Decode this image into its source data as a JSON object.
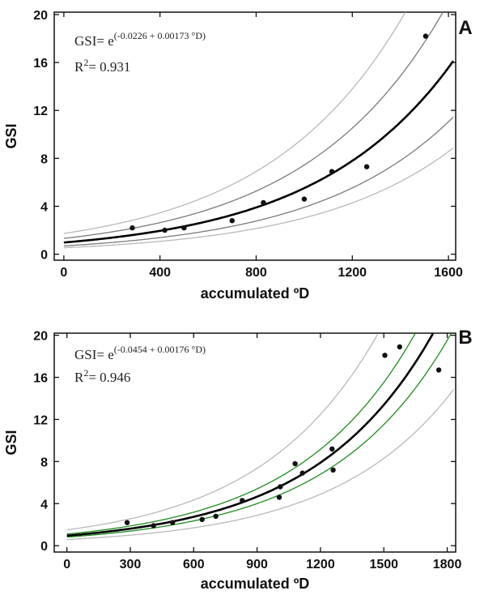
{
  "chart_data": [
    {
      "type": "scatter",
      "panel_label": "A",
      "xlabel": "accumulated ºD",
      "ylabel": "GSI",
      "xlim": [
        -40,
        1630
      ],
      "ylim": [
        -0.5,
        20.2
      ],
      "xticks": [
        0,
        400,
        800,
        1200,
        1600
      ],
      "yticks": [
        0,
        4,
        8,
        12,
        16,
        20
      ],
      "x_tick_labels": [
        "0",
        "400",
        "800",
        "1200",
        "1600"
      ],
      "y_tick_labels": [
        "0",
        "4",
        "8",
        "12",
        "16",
        "20"
      ],
      "equation_lhs": "GSI= e",
      "equation_exp": "(-0.0226 + 0.00173 °D)",
      "r2_label": "R",
      "r2_sup": "2",
      "r2_value": "= 0.931",
      "fit": {
        "a": -0.0226,
        "b": 0.00173
      },
      "inner_bands": {
        "upper_factor": 1.35,
        "lower_factor": 0.71
      },
      "outer_bands": {
        "upper_factor": 1.77,
        "lower_factor": 0.55
      },
      "grid": false,
      "colors": {
        "fit": "#000000",
        "inner_band": "#7a7a7a",
        "outer_band": "#b8b8b8",
        "points": "#111111"
      },
      "points": [
        {
          "x": 285,
          "y": 2.2
        },
        {
          "x": 420,
          "y": 2.0
        },
        {
          "x": 500,
          "y": 2.2
        },
        {
          "x": 700,
          "y": 2.8
        },
        {
          "x": 830,
          "y": 4.3
        },
        {
          "x": 1000,
          "y": 4.6
        },
        {
          "x": 1115,
          "y": 6.9
        },
        {
          "x": 1260,
          "y": 7.3
        },
        {
          "x": 1505,
          "y": 18.2
        }
      ]
    },
    {
      "type": "scatter",
      "panel_label": "B",
      "xlabel": "accumulated ºD",
      "ylabel": "GSI",
      "xlim": [
        -60,
        1840
      ],
      "ylim": [
        -0.6,
        20.2
      ],
      "xticks": [
        0,
        300,
        600,
        900,
        1200,
        1500,
        1800
      ],
      "yticks": [
        0,
        4,
        8,
        12,
        16,
        20
      ],
      "x_tick_labels": [
        "0",
        "300",
        "600",
        "900",
        "1200",
        "1500",
        "1800"
      ],
      "y_tick_labels": [
        "0",
        "4",
        "8",
        "12",
        "16",
        "20"
      ],
      "equation_lhs": "GSI= e",
      "equation_exp": "(-0.0454 + 0.00176 °D)",
      "r2_label": "R",
      "r2_sup": "2",
      "r2_value": "= 0.946",
      "fit": {
        "a": -0.0454,
        "b": 0.00176
      },
      "inner_bands": {
        "upper_factor": 1.16,
        "lower_factor": 0.86
      },
      "outer_bands": {
        "upper_factor": 1.58,
        "lower_factor": 0.62
      },
      "grid": false,
      "colors": {
        "fit": "#000000",
        "inner_band": "#1e8a1e",
        "outer_band": "#b8b8b8",
        "points": "#111111"
      },
      "points": [
        {
          "x": 285,
          "y": 2.2
        },
        {
          "x": 410,
          "y": 1.9
        },
        {
          "x": 500,
          "y": 2.2
        },
        {
          "x": 640,
          "y": 2.5
        },
        {
          "x": 705,
          "y": 2.8
        },
        {
          "x": 830,
          "y": 4.3
        },
        {
          "x": 1005,
          "y": 4.6
        },
        {
          "x": 1010,
          "y": 5.6
        },
        {
          "x": 1080,
          "y": 7.8
        },
        {
          "x": 1115,
          "y": 6.9
        },
        {
          "x": 1255,
          "y": 9.2
        },
        {
          "x": 1260,
          "y": 7.2
        },
        {
          "x": 1505,
          "y": 18.1
        },
        {
          "x": 1575,
          "y": 18.9
        },
        {
          "x": 1760,
          "y": 16.7
        }
      ]
    }
  ]
}
